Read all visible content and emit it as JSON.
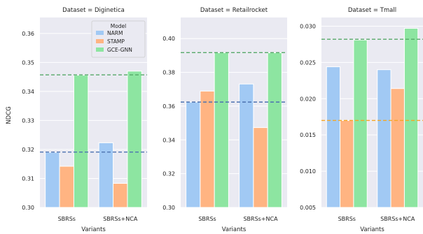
{
  "y_axis_label": "NDCG",
  "legend": {
    "title": "Model",
    "entries": [
      {
        "name": "NARM",
        "color": "#a1c9f4"
      },
      {
        "name": "STAMP",
        "color": "#ffb482"
      },
      {
        "name": "GCE-GNN",
        "color": "#8de5a1"
      }
    ]
  },
  "chart_data": [
    {
      "type": "bar",
      "title": "Dataset = Diginetica",
      "xlabel": "Variants",
      "ylabel": "NDCG",
      "categories": [
        "SBRSs",
        "SBRSs+NCA"
      ],
      "series": [
        {
          "name": "NARM",
          "values": [
            0.319,
            0.3223
          ]
        },
        {
          "name": "STAMP",
          "values": [
            0.3142,
            0.3083
          ]
        },
        {
          "name": "GCE-GNN",
          "values": [
            0.3456,
            0.347
          ]
        }
      ],
      "ylim": [
        0.3,
        0.3655
      ],
      "yticks": [
        "0.30",
        "0.31",
        "0.32",
        "0.33",
        "0.34",
        "0.35",
        "0.36"
      ],
      "reference_lines": [
        {
          "value": 0.3191,
          "color": "#4c72b0"
        },
        {
          "value": 0.3457,
          "color": "#55a868"
        }
      ],
      "grid": true,
      "legend_position": "top-right"
    },
    {
      "type": "bar",
      "title": "Dataset = Retailrocket",
      "xlabel": "Variants",
      "ylabel": "",
      "categories": [
        "SBRSs",
        "SBRSs+NCA"
      ],
      "series": [
        {
          "name": "NARM",
          "values": [
            0.3624,
            0.3731
          ]
        },
        {
          "name": "STAMP",
          "values": [
            0.3689,
            0.3473
          ]
        },
        {
          "name": "GCE-GNN",
          "values": [
            0.3916,
            0.3916
          ]
        }
      ],
      "ylim": [
        0.3,
        0.4125
      ],
      "yticks": [
        "0.30",
        "0.32",
        "0.34",
        "0.36",
        "0.38",
        "0.40"
      ],
      "reference_lines": [
        {
          "value": 0.3624,
          "color": "#4c72b0"
        },
        {
          "value": 0.3917,
          "color": "#55a868"
        }
      ],
      "grid": true
    },
    {
      "type": "bar",
      "title": "Dataset = Tmall",
      "xlabel": "Variants",
      "ylabel": "",
      "categories": [
        "SBRSs",
        "SBRSs+NCA"
      ],
      "series": [
        {
          "name": "NARM",
          "values": [
            0.0244,
            0.024
          ]
        },
        {
          "name": "STAMP",
          "values": [
            0.017,
            0.0214
          ]
        },
        {
          "name": "GCE-GNN",
          "values": [
            0.0281,
            0.0297
          ]
        }
      ],
      "ylim": [
        0.005,
        0.0312
      ],
      "yticks": [
        "0.005",
        "0.010",
        "0.015",
        "0.020",
        "0.025",
        "0.030"
      ],
      "reference_lines": [
        {
          "value": 0.017,
          "color": "#f5a623"
        },
        {
          "value": 0.0282,
          "color": "#55a868"
        }
      ],
      "grid": true
    }
  ]
}
